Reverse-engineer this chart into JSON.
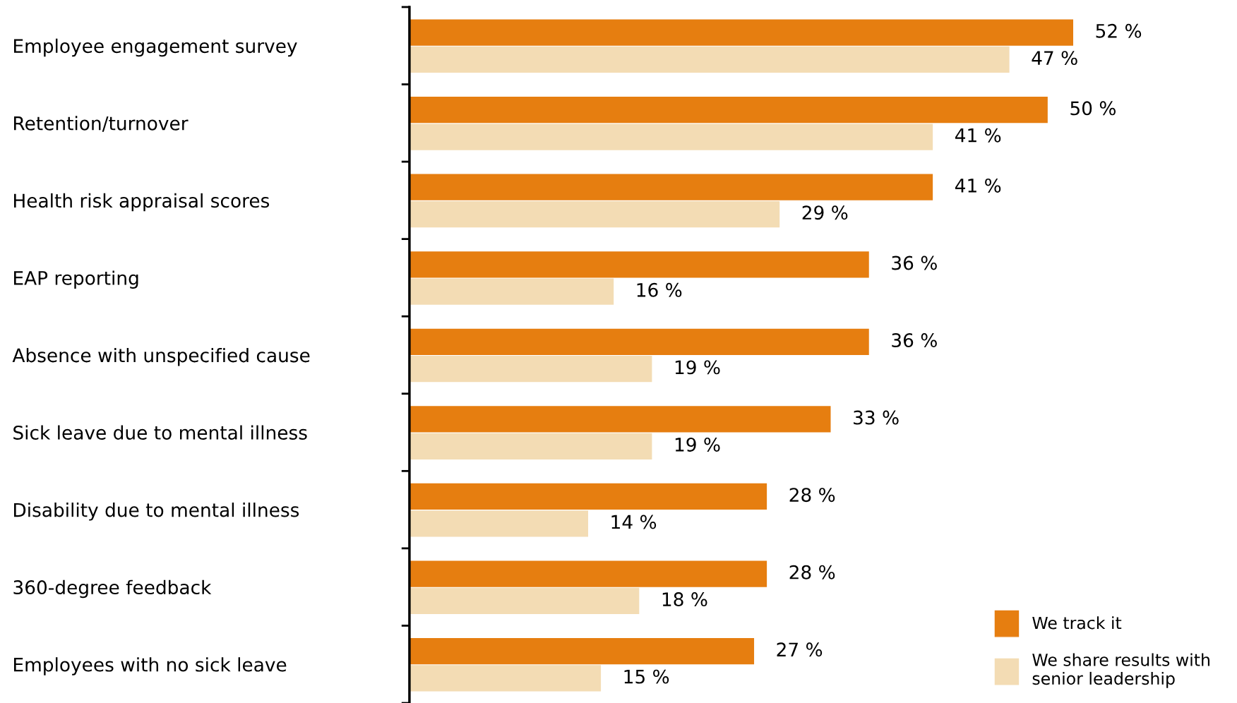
{
  "chart_data": {
    "type": "bar",
    "orientation": "horizontal",
    "categories": [
      "Employee engagement survey",
      "Retention/turnover",
      "Health risk appraisal scores",
      "EAP reporting",
      "Absence with unspecified cause",
      "Sick leave due to mental illness",
      "Disability due to mental illness",
      "360-degree feedback",
      "Employees with no sick leave"
    ],
    "series": [
      {
        "name": "We track it",
        "color": "#e67e10",
        "values": [
          52,
          50,
          41,
          36,
          36,
          33,
          28,
          28,
          27
        ],
        "value_labels": [
          "52 %",
          "50 %",
          "41 %",
          "36 %",
          "36 %",
          "33 %",
          "28 %",
          "28 %",
          "27 %"
        ]
      },
      {
        "name": "We share results with\nsenior leadership",
        "color": "#f3dcb4",
        "values": [
          47,
          41,
          29,
          16,
          19,
          19,
          14,
          18,
          15
        ],
        "value_labels": [
          "47 %",
          "41 %",
          "29 %",
          "16 %",
          "19 %",
          "19 %",
          "14 %",
          "18 %",
          "15 %"
        ]
      }
    ],
    "tick_labels": "y",
    "grid": false,
    "legend": "bottom right"
  }
}
